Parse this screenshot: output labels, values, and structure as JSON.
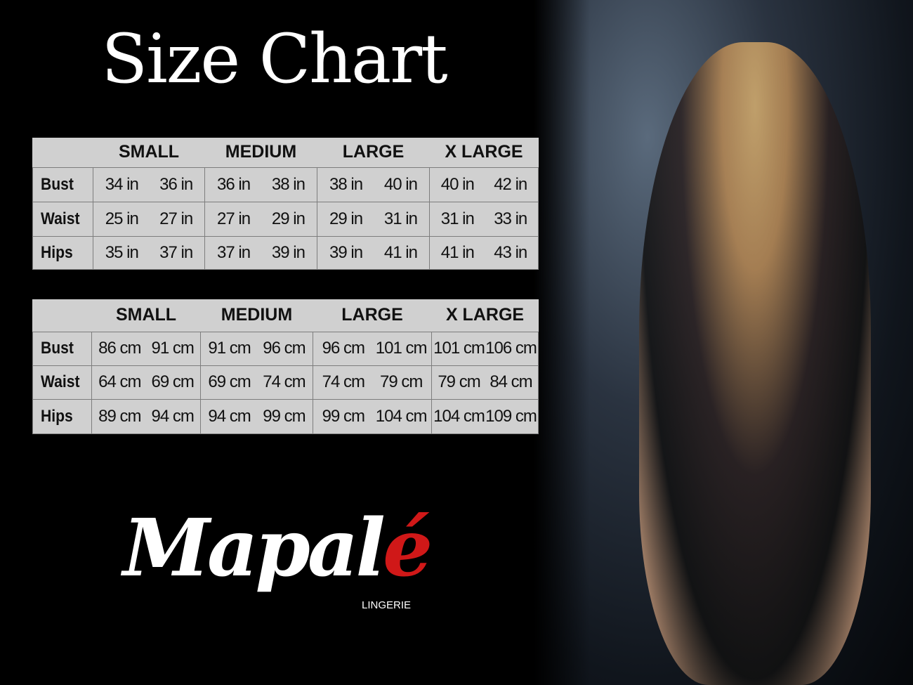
{
  "title": "Size Chart",
  "sizes": [
    "SMALL",
    "MEDIUM",
    "LARGE",
    "X LARGE"
  ],
  "tables": [
    {
      "rows": [
        {
          "label": "Bust",
          "values": [
            "34 in",
            "36 in",
            "36 in",
            "38 in",
            "38 in",
            "40 in",
            "40 in",
            "42 in"
          ]
        },
        {
          "label": "Waist",
          "values": [
            "25 in",
            "27 in",
            "27 in",
            "29 in",
            "29 in",
            "31 in",
            "31 in",
            "33 in"
          ]
        },
        {
          "label": "Hips",
          "values": [
            "35 in",
            "37 in",
            "37 in",
            "39 in",
            "39 in",
            "41 in",
            "41 in",
            "43 in"
          ]
        }
      ]
    },
    {
      "rows": [
        {
          "label": "Bust",
          "values": [
            "86 cm",
            "91 cm",
            "91 cm",
            "96 cm",
            "96 cm",
            "101 cm",
            "101 cm",
            "106 cm"
          ]
        },
        {
          "label": "Waist",
          "values": [
            "64 cm",
            "69 cm",
            "69 cm",
            "74 cm",
            "74 cm",
            "79  cm",
            "79 cm",
            "84 cm"
          ]
        },
        {
          "label": "Hips",
          "values": [
            "89 cm",
            "94 cm",
            "94 cm",
            "99 cm",
            "99 cm",
            "104 cm",
            "104 cm",
            "109 cm"
          ]
        }
      ]
    }
  ],
  "brand": {
    "name_main": "Mapal",
    "name_accent": "é",
    "tagline": "LINGERIE",
    "accent_color": "#d01818"
  }
}
